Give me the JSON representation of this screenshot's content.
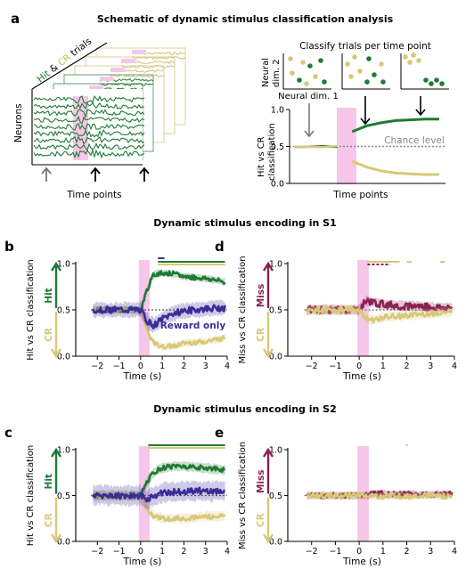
{
  "colors": {
    "hit": "#1f7a34",
    "cr": "#d8c878",
    "miss": "#8a2252",
    "reward": "#3a2c98",
    "stim": "#f7c6ea",
    "chance": "#888888",
    "axis": "#000000"
  },
  "panels": {
    "a": {
      "letter": "a",
      "title": "Schematic of dynamic stimulus classification analysis",
      "trials_hit": "Hit",
      "trials_amp": " & ",
      "trials_cr": "CR",
      "trials_rest": " trials",
      "neurons_label": "Neurons",
      "time_label": "Time points",
      "classify_label": "Classify trials per time point",
      "dim2_line1": "Neural",
      "dim2_line2": "dim. 2",
      "dim1_label": "Neural dim. 1",
      "ylabel_line1": "Hit vs CR",
      "ylabel_line2": "classification",
      "chance_label": "Chance level",
      "right_time_label": "Time points",
      "yticks": [
        "0.0",
        "0.5",
        "1.0"
      ]
    },
    "s1_title": "Dynamic stimulus encoding in S1",
    "s2_title": "Dynamic stimulus encoding in S2",
    "b": {
      "letter": "b",
      "ylabel": "Hit vs CR classification",
      "xlabel": "Time (s)",
      "top_tag": "Hit",
      "bottom_tag": "CR",
      "reward_label": "Reward only",
      "xticks": [
        "−2",
        "−1",
        "0",
        "1",
        "2",
        "3",
        "4"
      ],
      "yticks": [
        "0.0",
        "0.5",
        "1.0"
      ]
    },
    "d": {
      "letter": "d",
      "ylabel": "Miss vs CR classification",
      "xlabel": "Time (s)",
      "top_tag": "Miss",
      "bottom_tag": "CR",
      "xticks": [
        "−2",
        "−1",
        "0",
        "1",
        "2",
        "3",
        "4"
      ],
      "yticks": [
        "0.0",
        "0.5",
        "1.0"
      ]
    },
    "c": {
      "letter": "c",
      "ylabel": "Hit vs CR classification",
      "xlabel": "Time (s)",
      "top_tag": "Hit",
      "bottom_tag": "CR",
      "xticks": [
        "−2",
        "−1",
        "0",
        "1",
        "2",
        "3",
        "4"
      ],
      "yticks": [
        "0.0",
        "0.5",
        "1.0"
      ]
    },
    "e": {
      "letter": "e",
      "ylabel": "Miss vs CR classification",
      "xlabel": "Time (s)",
      "top_tag": "Miss",
      "bottom_tag": "CR",
      "xticks": [
        "−2",
        "−1",
        "0",
        "1",
        "2",
        "3",
        "4"
      ],
      "yticks": [
        "0.0",
        "0.5",
        "1.0"
      ]
    }
  },
  "chart_data": [
    {
      "panel": "a-right",
      "type": "line",
      "xlabel": "Time points",
      "ylabel": "Hit vs CR classification",
      "ylim": [
        0,
        1
      ],
      "chance_level": 0.5,
      "series": [
        {
          "color": "hit",
          "x": [
            0,
            1,
            2,
            3,
            4,
            5,
            6,
            7,
            8,
            9,
            10
          ],
          "values": [
            0.5,
            0.5,
            0.5,
            0.5,
            0.7,
            0.78,
            0.82,
            0.85,
            0.86,
            0.87,
            0.87
          ]
        },
        {
          "color": "cr",
          "x": [
            0,
            1,
            2,
            3,
            4,
            5,
            6,
            7,
            8,
            9,
            10
          ],
          "values": [
            0.5,
            0.5,
            0.5,
            0.5,
            0.3,
            0.22,
            0.17,
            0.14,
            0.13,
            0.12,
            0.12
          ]
        }
      ]
    },
    {
      "panel": "b",
      "type": "line",
      "xlabel": "Time (s)",
      "ylabel": "Hit vs CR classification",
      "xlim": [
        -3,
        4
      ],
      "ylim": [
        0,
        1
      ],
      "stimulus_window": [
        0,
        0.25
      ],
      "chance_level": 0.5,
      "series": [
        {
          "name": "Hit",
          "color": "hit",
          "x": [
            -2.2,
            -1.5,
            -1,
            -0.5,
            0,
            0.3,
            0.6,
            1,
            1.5,
            2,
            2.5,
            3,
            3.5,
            3.9
          ],
          "values": [
            0.5,
            0.5,
            0.5,
            0.5,
            0.5,
            0.72,
            0.88,
            0.9,
            0.89,
            0.86,
            0.85,
            0.84,
            0.82,
            0.8
          ]
        },
        {
          "name": "CR",
          "color": "cr",
          "x": [
            -2.2,
            -1.5,
            -1,
            -0.5,
            0,
            0.3,
            0.6,
            1,
            1.5,
            2,
            2.5,
            3,
            3.5,
            3.9
          ],
          "values": [
            0.5,
            0.5,
            0.5,
            0.5,
            0.5,
            0.28,
            0.14,
            0.1,
            0.11,
            0.14,
            0.15,
            0.16,
            0.18,
            0.2
          ]
        },
        {
          "name": "Reward only",
          "color": "reward",
          "x": [
            -2.2,
            -1.5,
            -1,
            -0.5,
            0,
            0.3,
            0.6,
            1,
            1.5,
            2,
            2.5,
            3,
            3.5,
            3.9
          ],
          "values": [
            0.5,
            0.5,
            0.5,
            0.5,
            0.5,
            0.38,
            0.33,
            0.4,
            0.46,
            0.49,
            0.5,
            0.51,
            0.52,
            0.52
          ]
        }
      ]
    },
    {
      "panel": "d",
      "type": "line",
      "xlabel": "Time (s)",
      "ylabel": "Miss vs CR classification",
      "xlim": [
        -3,
        4
      ],
      "ylim": [
        0,
        1
      ],
      "stimulus_window": [
        0,
        0.25
      ],
      "chance_level": 0.5,
      "series": [
        {
          "name": "Miss",
          "color": "miss",
          "x": [
            -2.2,
            -1.5,
            -1,
            -0.5,
            0,
            0.3,
            0.6,
            1,
            1.5,
            2,
            2.5,
            3,
            3.5,
            3.9
          ],
          "values": [
            0.5,
            0.5,
            0.5,
            0.5,
            0.5,
            0.6,
            0.58,
            0.56,
            0.55,
            0.54,
            0.54,
            0.53,
            0.52,
            0.52
          ]
        },
        {
          "name": "CR",
          "color": "cr",
          "x": [
            -2.2,
            -1.5,
            -1,
            -0.5,
            0,
            0.3,
            0.6,
            1,
            1.5,
            2,
            2.5,
            3,
            3.5,
            3.9
          ],
          "values": [
            0.5,
            0.5,
            0.5,
            0.5,
            0.5,
            0.4,
            0.39,
            0.42,
            0.43,
            0.44,
            0.45,
            0.46,
            0.47,
            0.48
          ]
        }
      ]
    },
    {
      "panel": "c",
      "type": "line",
      "xlabel": "Time (s)",
      "ylabel": "Hit vs CR classification",
      "xlim": [
        -3,
        4
      ],
      "ylim": [
        0,
        1
      ],
      "stimulus_window": [
        0,
        0.25
      ],
      "chance_level": 0.5,
      "series": [
        {
          "name": "Hit",
          "color": "hit",
          "x": [
            -2.2,
            -1.5,
            -1,
            -0.5,
            0,
            0.3,
            0.6,
            1,
            1.5,
            2,
            2.5,
            3,
            3.5,
            3.9
          ],
          "values": [
            0.5,
            0.5,
            0.5,
            0.5,
            0.5,
            0.65,
            0.75,
            0.8,
            0.82,
            0.82,
            0.81,
            0.8,
            0.79,
            0.78
          ]
        },
        {
          "name": "CR",
          "color": "cr",
          "x": [
            -2.2,
            -1.5,
            -1,
            -0.5,
            0,
            0.3,
            0.6,
            1,
            1.5,
            2,
            2.5,
            3,
            3.5,
            3.9
          ],
          "values": [
            0.5,
            0.5,
            0.5,
            0.5,
            0.5,
            0.35,
            0.28,
            0.25,
            0.25,
            0.25,
            0.26,
            0.27,
            0.27,
            0.28
          ]
        },
        {
          "name": "Reward only",
          "color": "reward",
          "x": [
            -2.2,
            -1.5,
            -1,
            -0.5,
            0,
            0.3,
            0.6,
            1,
            1.5,
            2,
            2.5,
            3,
            3.5,
            3.9
          ],
          "values": [
            0.5,
            0.5,
            0.5,
            0.5,
            0.5,
            0.45,
            0.5,
            0.53,
            0.54,
            0.55,
            0.55,
            0.55,
            0.55,
            0.55
          ]
        }
      ]
    },
    {
      "panel": "e",
      "type": "line",
      "xlabel": "Time (s)",
      "ylabel": "Miss vs CR classification",
      "xlim": [
        -3,
        4
      ],
      "ylim": [
        0,
        1
      ],
      "stimulus_window": [
        0,
        0.25
      ],
      "chance_level": 0.5,
      "series": [
        {
          "name": "Miss",
          "color": "miss",
          "x": [
            -2.2,
            -1.5,
            -1,
            -0.5,
            0,
            0.3,
            0.6,
            1,
            1.5,
            2,
            2.5,
            3,
            3.5,
            3.9
          ],
          "values": [
            0.5,
            0.5,
            0.5,
            0.5,
            0.5,
            0.5,
            0.52,
            0.52,
            0.51,
            0.52,
            0.51,
            0.51,
            0.52,
            0.51
          ]
        },
        {
          "name": "CR",
          "color": "cr",
          "x": [
            -2.2,
            -1.5,
            -1,
            -0.5,
            0,
            0.3,
            0.6,
            1,
            1.5,
            2,
            2.5,
            3,
            3.5,
            3.9
          ],
          "values": [
            0.5,
            0.5,
            0.5,
            0.5,
            0.5,
            0.5,
            0.49,
            0.49,
            0.5,
            0.49,
            0.5,
            0.5,
            0.49,
            0.5
          ]
        }
      ]
    }
  ]
}
